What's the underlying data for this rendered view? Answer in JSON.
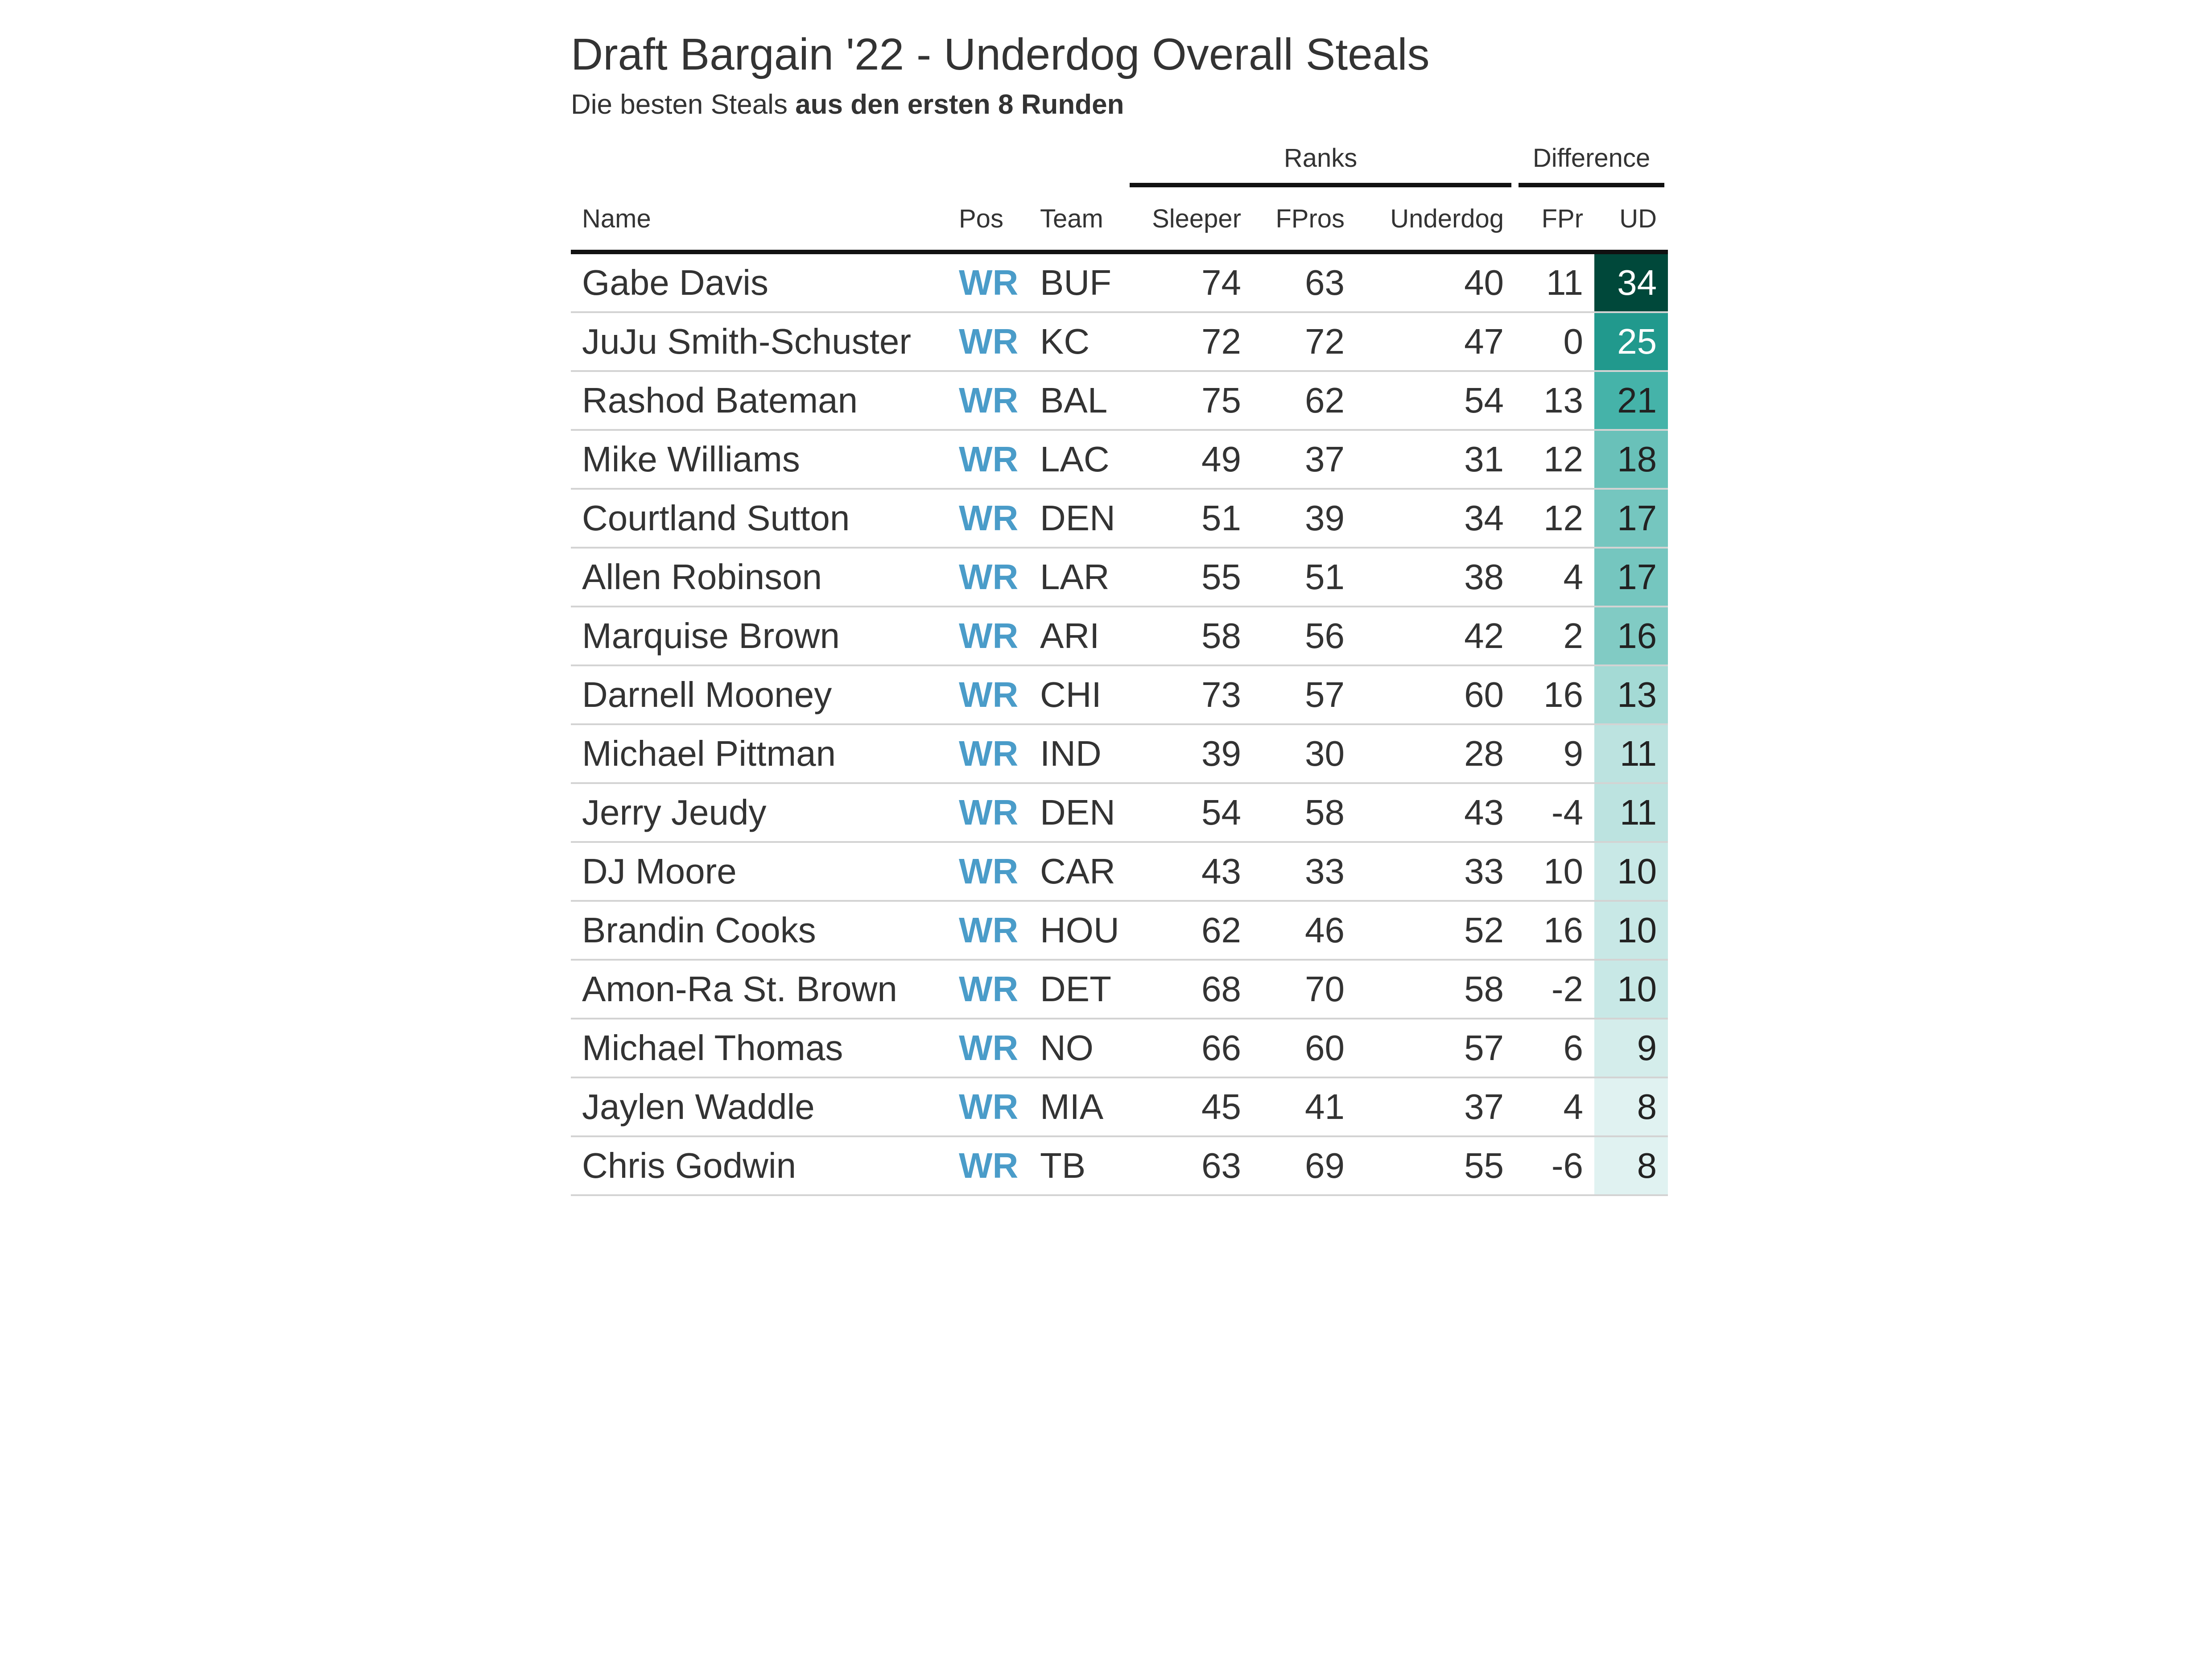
{
  "title": "Draft Bargain '22 - Underdog Overall Steals",
  "subtitle_plain": "Die besten Steals ",
  "subtitle_bold": "aus den ersten 8 Runden",
  "spanners": {
    "ranks": "Ranks",
    "difference": "Difference"
  },
  "columns": {
    "name": "Name",
    "pos": "Pos",
    "team": "Team",
    "sleeper": "Sleeper",
    "fpros": "FPros",
    "underdog": "Underdog",
    "diff_fpros": "FPr",
    "diff_ud": "UD"
  },
  "colors": {
    "position_text": "#4a9cc9",
    "heat_low": "#e0f2f1",
    "heat_high": "#00483a",
    "rule_dark": "#111111",
    "rule_light": "#d3d3d3",
    "text": "#333333"
  },
  "chart_data": {
    "type": "table",
    "title": "Draft Bargain '22 - Underdog Overall Steals",
    "subtitle": "Die besten Steals aus den ersten 8 Runden",
    "heat_column": "diff_ud",
    "heat_range": [
      8,
      34
    ],
    "rows": [
      {
        "name": "Gabe Davis",
        "pos": "WR",
        "team": "BUF",
        "sleeper": 74,
        "fpros": 63,
        "underdog": 40,
        "diff_fpros": 11,
        "diff_ud": 34
      },
      {
        "name": "JuJu Smith-Schuster",
        "pos": "WR",
        "team": "KC",
        "sleeper": 72,
        "fpros": 72,
        "underdog": 47,
        "diff_fpros": 0,
        "diff_ud": 25
      },
      {
        "name": "Rashod Bateman",
        "pos": "WR",
        "team": "BAL",
        "sleeper": 75,
        "fpros": 62,
        "underdog": 54,
        "diff_fpros": 13,
        "diff_ud": 21
      },
      {
        "name": "Mike Williams",
        "pos": "WR",
        "team": "LAC",
        "sleeper": 49,
        "fpros": 37,
        "underdog": 31,
        "diff_fpros": 12,
        "diff_ud": 18
      },
      {
        "name": "Courtland Sutton",
        "pos": "WR",
        "team": "DEN",
        "sleeper": 51,
        "fpros": 39,
        "underdog": 34,
        "diff_fpros": 12,
        "diff_ud": 17
      },
      {
        "name": "Allen Robinson",
        "pos": "WR",
        "team": "LAR",
        "sleeper": 55,
        "fpros": 51,
        "underdog": 38,
        "diff_fpros": 4,
        "diff_ud": 17
      },
      {
        "name": "Marquise Brown",
        "pos": "WR",
        "team": "ARI",
        "sleeper": 58,
        "fpros": 56,
        "underdog": 42,
        "diff_fpros": 2,
        "diff_ud": 16
      },
      {
        "name": "Darnell Mooney",
        "pos": "WR",
        "team": "CHI",
        "sleeper": 73,
        "fpros": 57,
        "underdog": 60,
        "diff_fpros": 16,
        "diff_ud": 13
      },
      {
        "name": "Michael Pittman",
        "pos": "WR",
        "team": "IND",
        "sleeper": 39,
        "fpros": 30,
        "underdog": 28,
        "diff_fpros": 9,
        "diff_ud": 11
      },
      {
        "name": "Jerry Jeudy",
        "pos": "WR",
        "team": "DEN",
        "sleeper": 54,
        "fpros": 58,
        "underdog": 43,
        "diff_fpros": -4,
        "diff_ud": 11
      },
      {
        "name": "DJ Moore",
        "pos": "WR",
        "team": "CAR",
        "sleeper": 43,
        "fpros": 33,
        "underdog": 33,
        "diff_fpros": 10,
        "diff_ud": 10
      },
      {
        "name": "Brandin Cooks",
        "pos": "WR",
        "team": "HOU",
        "sleeper": 62,
        "fpros": 46,
        "underdog": 52,
        "diff_fpros": 16,
        "diff_ud": 10
      },
      {
        "name": "Amon-Ra St. Brown",
        "pos": "WR",
        "team": "DET",
        "sleeper": 68,
        "fpros": 70,
        "underdog": 58,
        "diff_fpros": -2,
        "diff_ud": 10
      },
      {
        "name": "Michael Thomas",
        "pos": "WR",
        "team": "NO",
        "sleeper": 66,
        "fpros": 60,
        "underdog": 57,
        "diff_fpros": 6,
        "diff_ud": 9
      },
      {
        "name": "Jaylen Waddle",
        "pos": "WR",
        "team": "MIA",
        "sleeper": 45,
        "fpros": 41,
        "underdog": 37,
        "diff_fpros": 4,
        "diff_ud": 8
      },
      {
        "name": "Chris Godwin",
        "pos": "WR",
        "team": "TB",
        "sleeper": 63,
        "fpros": 69,
        "underdog": 55,
        "diff_fpros": -6,
        "diff_ud": 8
      }
    ]
  }
}
